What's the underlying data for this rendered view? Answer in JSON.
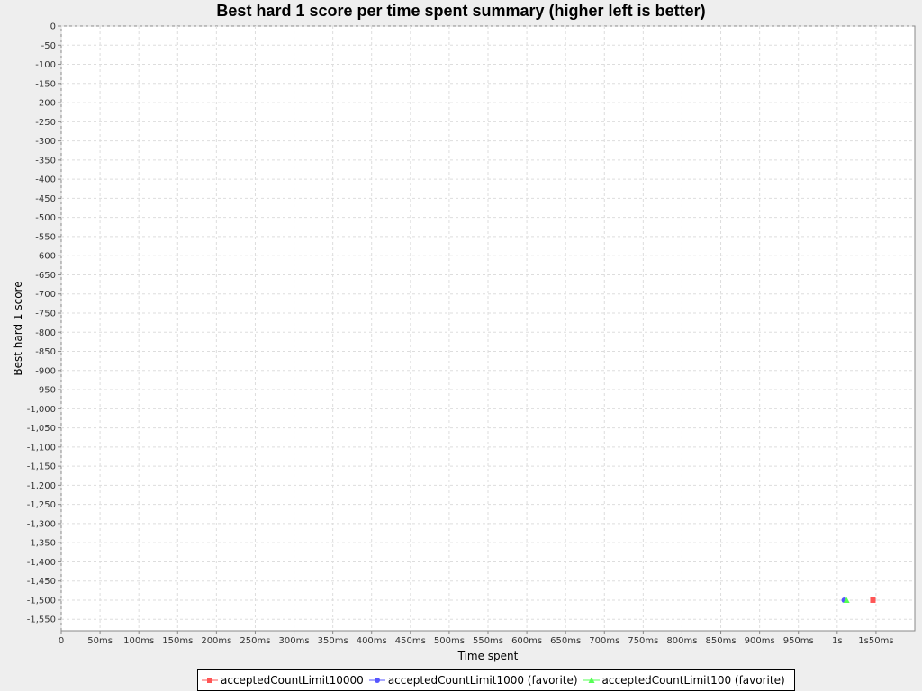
{
  "chart_data": {
    "type": "scatter",
    "title": "Best hard 1 score per time spent summary (higher left is better)",
    "xlabel": "Time spent",
    "ylabel": "Best hard 1 score",
    "xlim": [
      0,
      1100
    ],
    "ylim": [
      -1580,
      0
    ],
    "x_ticks": [
      {
        "value": 0,
        "label": "0"
      },
      {
        "value": 50,
        "label": "50ms"
      },
      {
        "value": 100,
        "label": "100ms"
      },
      {
        "value": 150,
        "label": "150ms"
      },
      {
        "value": 200,
        "label": "200ms"
      },
      {
        "value": 250,
        "label": "250ms"
      },
      {
        "value": 300,
        "label": "300ms"
      },
      {
        "value": 350,
        "label": "350ms"
      },
      {
        "value": 400,
        "label": "400ms"
      },
      {
        "value": 450,
        "label": "450ms"
      },
      {
        "value": 500,
        "label": "500ms"
      },
      {
        "value": 550,
        "label": "550ms"
      },
      {
        "value": 600,
        "label": "600ms"
      },
      {
        "value": 650,
        "label": "650ms"
      },
      {
        "value": 700,
        "label": "700ms"
      },
      {
        "value": 750,
        "label": "750ms"
      },
      {
        "value": 800,
        "label": "800ms"
      },
      {
        "value": 850,
        "label": "850ms"
      },
      {
        "value": 900,
        "label": "900ms"
      },
      {
        "value": 950,
        "label": "950ms"
      },
      {
        "value": 1000,
        "label": "1s"
      },
      {
        "value": 1050,
        "label": "1s50ms"
      }
    ],
    "y_ticks": [
      {
        "value": 0,
        "label": "0"
      },
      {
        "value": -50,
        "label": "-50"
      },
      {
        "value": -100,
        "label": "-100"
      },
      {
        "value": -150,
        "label": "-150"
      },
      {
        "value": -200,
        "label": "-200"
      },
      {
        "value": -250,
        "label": "-250"
      },
      {
        "value": -300,
        "label": "-300"
      },
      {
        "value": -350,
        "label": "-350"
      },
      {
        "value": -400,
        "label": "-400"
      },
      {
        "value": -450,
        "label": "-450"
      },
      {
        "value": -500,
        "label": "-500"
      },
      {
        "value": -550,
        "label": "-550"
      },
      {
        "value": -600,
        "label": "-600"
      },
      {
        "value": -650,
        "label": "-650"
      },
      {
        "value": -700,
        "label": "-700"
      },
      {
        "value": -750,
        "label": "-750"
      },
      {
        "value": -800,
        "label": "-800"
      },
      {
        "value": -850,
        "label": "-850"
      },
      {
        "value": -900,
        "label": "-900"
      },
      {
        "value": -950,
        "label": "-950"
      },
      {
        "value": -1000,
        "label": "-1,000"
      },
      {
        "value": -1050,
        "label": "-1,050"
      },
      {
        "value": -1100,
        "label": "-1,100"
      },
      {
        "value": -1150,
        "label": "-1,150"
      },
      {
        "value": -1200,
        "label": "-1,200"
      },
      {
        "value": -1250,
        "label": "-1,250"
      },
      {
        "value": -1300,
        "label": "-1,300"
      },
      {
        "value": -1350,
        "label": "-1,350"
      },
      {
        "value": -1400,
        "label": "-1,400"
      },
      {
        "value": -1450,
        "label": "-1,450"
      },
      {
        "value": -1500,
        "label": "-1,500"
      },
      {
        "value": -1550,
        "label": "-1,550"
      }
    ],
    "grid": true,
    "legend_position": "bottom",
    "series": [
      {
        "name": "acceptedCountLimit10000",
        "marker": "square",
        "color": "#ff5555",
        "points": [
          {
            "x": 1046,
            "y": -1500
          }
        ]
      },
      {
        "name": "acceptedCountLimit1000 (favorite)",
        "marker": "circle",
        "color": "#5555ff",
        "points": [
          {
            "x": 1009,
            "y": -1500
          }
        ]
      },
      {
        "name": "acceptedCountLimit100 (favorite)",
        "marker": "triangle",
        "color": "#55ff55",
        "points": [
          {
            "x": 1012,
            "y": -1500
          }
        ]
      }
    ]
  }
}
